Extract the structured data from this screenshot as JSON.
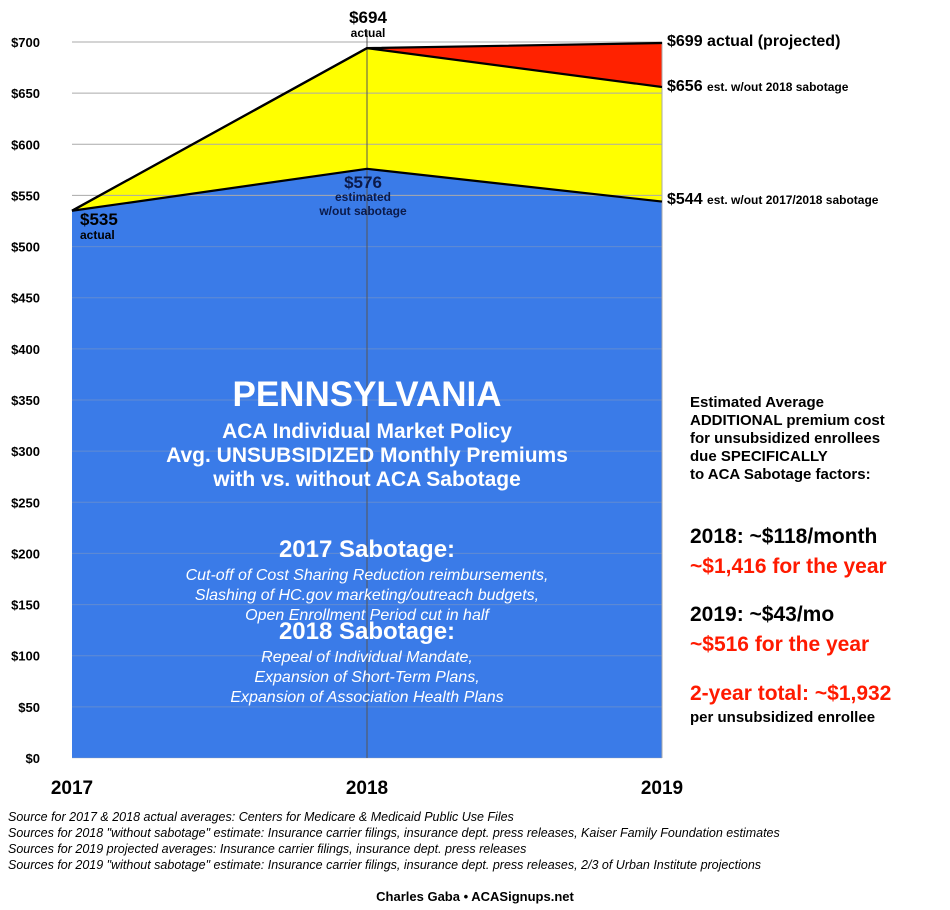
{
  "chart_data": {
    "type": "area",
    "categories": [
      "2017",
      "2018",
      "2019"
    ],
    "ylim": [
      0,
      700
    ],
    "yticks": [
      "$0",
      "$50",
      "$100",
      "$150",
      "$200",
      "$250",
      "$300",
      "$350",
      "$400",
      "$450",
      "$500",
      "$550",
      "$600",
      "$650",
      "$700"
    ],
    "grid": true,
    "series": [
      {
        "values": [
          535,
          576,
          544
        ],
        "color": "#3a7be8"
      },
      {
        "values": [
          535,
          694,
          656
        ],
        "color": "#ffff00"
      },
      {
        "values": [
          535,
          694,
          699
        ],
        "color": "#ff2200"
      }
    ],
    "labels": {
      "p2017": {
        "value": "$535",
        "note": "actual"
      },
      "p2018_actual": {
        "value": "$694",
        "note": "actual"
      },
      "p2018_est": {
        "value": "$576",
        "note1": "estimated",
        "note2": "w/out sabotage"
      },
      "p2019_actual": "$699 actual (projected)",
      "p2019_656": {
        "value": "$656",
        "note": "est. w/out 2018 sabotage"
      },
      "p2019_544": {
        "value": "$544",
        "note": "est. w/out 2017/2018 sabotage"
      }
    }
  },
  "overlay": {
    "state": "PENNSYLVANIA",
    "subtitle1": "ACA Individual Market Policy",
    "subtitle2": "Avg. UNSUBSIDIZED Monthly Premiums",
    "subtitle3": "with vs. without ACA Sabotage",
    "s2017_title": "2017 Sabotage:",
    "s2017_items": [
      "Cut-off of Cost Sharing Reduction reimbursements,",
      "Slashing of HC.gov marketing/outreach budgets,",
      "Open Enrollment Period cut in half"
    ],
    "s2018_title": "2018 Sabotage:",
    "s2018_items": [
      "Repeal of Individual Mandate,",
      "Expansion of Short-Term Plans,",
      "Expansion of Association Health Plans"
    ]
  },
  "side": {
    "intro": [
      "Estimated Average",
      "ADDITIONAL premium cost",
      "for unsubsidized enrollees",
      "due SPECIFICALLY",
      "to ACA Sabotage factors:"
    ],
    "y2018_month": "2018: ~$118/month",
    "y2018_year": "~$1,416 for the year",
    "y2019_month": "2019: ~$43/mo",
    "y2019_year": "~$516 for the year",
    "total": "2-year total: ~$1,932",
    "total_note": "per unsubsidized enrollee"
  },
  "sources": [
    "Source for 2017 & 2018 actual averages: Centers for Medicare & Medicaid Public Use Files",
    "Sources for 2018 \"without sabotage\" estimate: Insurance carrier filings, insurance dept. press releases, Kaiser Family Foundation estimates",
    "Sources for 2019 projected averages: Insurance carrier filings, insurance dept. press releases",
    "Sources for 2019 \"without sabotage\" estimate: Insurance carrier filings, insurance dept. press releases, 2/3 of Urban Institute projections"
  ],
  "credit": "Charles Gaba • ACASignups.net"
}
